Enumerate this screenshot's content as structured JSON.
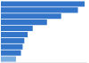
{
  "chart_data": {
    "type": "bar",
    "orientation": "horizontal",
    "values": [
      100,
      92,
      72,
      55,
      38,
      32,
      28,
      26,
      24,
      18
    ],
    "colors": [
      "#3375c8",
      "#3375c8",
      "#3375c8",
      "#3375c8",
      "#3375c8",
      "#3375c8",
      "#3375c8",
      "#3375c8",
      "#3375c8",
      "#7aaee0"
    ],
    "xlim": [
      0,
      102
    ],
    "grid": false,
    "tick_labels": false
  }
}
